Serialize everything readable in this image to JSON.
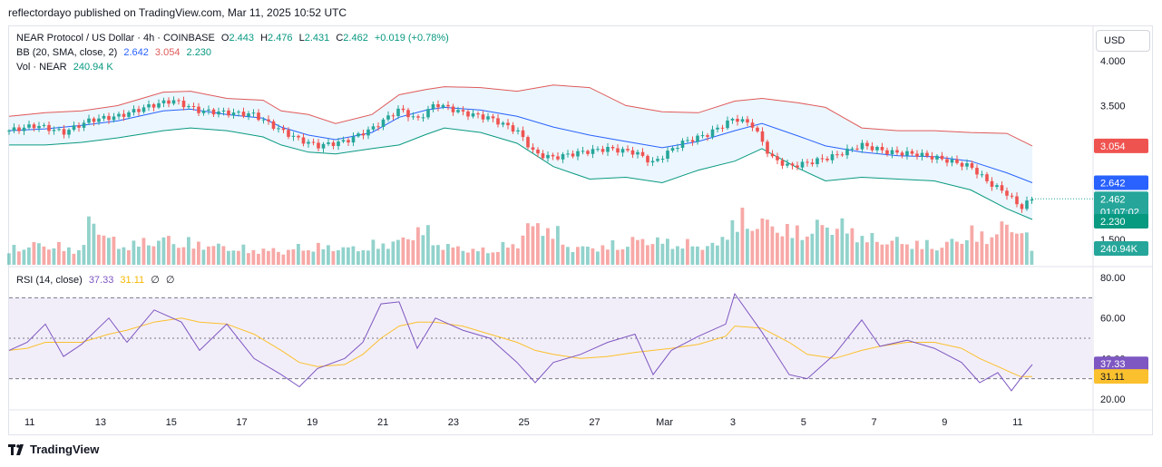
{
  "header": {
    "published": "reflectordayo published on TradingView.com, Mar 11, 2025 10:52 UTC"
  },
  "legend": {
    "symbol": "NEAR Protocol / US Dollar · 4h · COINBASE",
    "o_label": "O",
    "o": "2.443",
    "h_label": "H",
    "h": "2.476",
    "l_label": "L",
    "l": "2.431",
    "c_label": "C",
    "c": "2.462",
    "change": "+0.019 (+0.78%)",
    "bb_label": "BB (20, SMA, close, 2)",
    "bb_basis": "2.642",
    "bb_upper": "3.054",
    "bb_lower": "2.230",
    "vol_label": "Vol · NEAR",
    "vol": "240.94 K",
    "rsi_label": "RSI (14, close)",
    "rsi": "37.33",
    "rsi_ma": "31.11",
    "rsi_extra1": "∅",
    "rsi_extra2": "∅"
  },
  "currency_button": "USD",
  "price_axis": {
    "ticks": [
      "4.000",
      "3.500",
      "1.500"
    ],
    "badges": {
      "upper": "3.054",
      "basis": "2.642",
      "price": "2.462",
      "countdown": "01:07:02",
      "lower": "2.230",
      "volume": "240.94K"
    }
  },
  "rsi_axis": {
    "ticks": [
      "80.00",
      "60.00",
      "40.00",
      "20.00"
    ],
    "badges": {
      "rsi": "37.33",
      "ma": "31.11"
    }
  },
  "time_axis": [
    "11",
    "13",
    "15",
    "17",
    "19",
    "21",
    "23",
    "25",
    "27",
    "Mar",
    "3",
    "5",
    "7",
    "9",
    "11"
  ],
  "footer": {
    "brand": "TradingView"
  },
  "colors": {
    "up": "#26a69a",
    "down": "#ef5350",
    "bb_upper": "#e05a5a",
    "bb_basis": "#2962ff",
    "bb_lower": "#089981",
    "bb_fill": "#e3f2fd",
    "rsi": "#7e57c2",
    "rsi_ma": "#fbc02d",
    "rsi_band": "#ede7f6"
  },
  "chart_data": {
    "type": "candlestick",
    "series": [
      {
        "name": "BB (20, SMA, close, 2)",
        "subseries": [
          "upper",
          "basis",
          "lower"
        ]
      },
      {
        "name": "Vol · NEAR"
      },
      {
        "name": "RSI (14, close)"
      }
    ],
    "price_ylim": [
      2.2,
      4.05
    ],
    "rsi_ylim": [
      15,
      85
    ],
    "rsi_levels": [
      70,
      50,
      30
    ],
    "bb_points_x": [
      0,
      40,
      80,
      120,
      170,
      200,
      240,
      280,
      300,
      330,
      360,
      400,
      430,
      460,
      480,
      520,
      560,
      600,
      640,
      680,
      720,
      760,
      800,
      830,
      870,
      900,
      940,
      980,
      1020,
      1060,
      1100,
      1128
    ],
    "bb_upper": [
      3.38,
      3.42,
      3.44,
      3.5,
      3.65,
      3.66,
      3.58,
      3.56,
      3.44,
      3.4,
      3.3,
      3.4,
      3.62,
      3.68,
      3.71,
      3.7,
      3.66,
      3.73,
      3.7,
      3.5,
      3.43,
      3.42,
      3.55,
      3.58,
      3.53,
      3.48,
      3.25,
      3.22,
      3.22,
      3.2,
      3.19,
      3.05
    ],
    "bb_basis": [
      3.22,
      3.24,
      3.28,
      3.33,
      3.44,
      3.46,
      3.4,
      3.36,
      3.26,
      3.17,
      3.12,
      3.2,
      3.37,
      3.45,
      3.48,
      3.45,
      3.38,
      3.26,
      3.17,
      3.1,
      3.03,
      3.1,
      3.22,
      3.3,
      3.16,
      3.05,
      2.98,
      2.94,
      2.93,
      2.88,
      2.75,
      2.64
    ],
    "bb_lower": [
      3.06,
      3.06,
      3.09,
      3.14,
      3.22,
      3.25,
      3.22,
      3.15,
      3.06,
      2.98,
      2.96,
      3.02,
      3.06,
      3.18,
      3.25,
      3.2,
      3.08,
      2.82,
      2.68,
      2.7,
      2.64,
      2.78,
      2.88,
      3.02,
      2.8,
      2.66,
      2.7,
      2.68,
      2.66,
      2.56,
      2.35,
      2.23
    ],
    "close_points_x": [
      0,
      30,
      60,
      90,
      120,
      150,
      180,
      210,
      240,
      270,
      300,
      320,
      340,
      370,
      400,
      430,
      450,
      470,
      500,
      530,
      560,
      580,
      600,
      630,
      660,
      690,
      710,
      740,
      770,
      800,
      820,
      840,
      860,
      880,
      910,
      940,
      970,
      1000,
      1030,
      1060,
      1080,
      1100,
      1115,
      1128
    ],
    "close": [
      3.22,
      3.28,
      3.2,
      3.34,
      3.38,
      3.48,
      3.56,
      3.44,
      3.42,
      3.4,
      3.22,
      3.12,
      3.05,
      3.1,
      3.24,
      3.46,
      3.34,
      3.52,
      3.42,
      3.36,
      3.22,
      2.96,
      2.92,
      2.98,
      3.02,
      2.98,
      2.86,
      3.08,
      3.18,
      3.36,
      3.28,
      2.92,
      2.82,
      2.86,
      2.94,
      3.06,
      2.98,
      2.96,
      2.9,
      2.82,
      2.64,
      2.52,
      2.36,
      2.46
    ],
    "volume_points_x": [
      0,
      40,
      80,
      90,
      120,
      170,
      210,
      250,
      300,
      330,
      380,
      410,
      440,
      450,
      480,
      520,
      560,
      570,
      595,
      620,
      660,
      700,
      740,
      780,
      800,
      830,
      870,
      910,
      950,
      980,
      1030,
      1060,
      1080,
      1100,
      1115,
      1128
    ],
    "volume_rel": [
      0.35,
      0.45,
      0.3,
      1.0,
      0.4,
      0.55,
      0.45,
      0.35,
      0.3,
      0.4,
      0.35,
      0.45,
      0.55,
      0.85,
      0.4,
      0.3,
      0.45,
      0.8,
      0.85,
      0.35,
      0.4,
      0.55,
      0.45,
      0.4,
      1.0,
      0.9,
      0.7,
      0.9,
      0.55,
      0.5,
      0.4,
      0.7,
      0.6,
      0.85,
      0.8,
      0.35
    ],
    "rsi_points_x": [
      0,
      20,
      40,
      60,
      80,
      110,
      130,
      160,
      190,
      210,
      240,
      270,
      300,
      320,
      340,
      370,
      390,
      410,
      430,
      450,
      470,
      500,
      530,
      560,
      580,
      600,
      630,
      660,
      690,
      710,
      730,
      760,
      790,
      800,
      830,
      860,
      880,
      910,
      940,
      960,
      990,
      1020,
      1050,
      1070,
      1090,
      1105,
      1115,
      1128
    ],
    "rsi": [
      44,
      48,
      57,
      41,
      47,
      60,
      48,
      64,
      58,
      44,
      57,
      40,
      32,
      26,
      35,
      40,
      48,
      67,
      68,
      45,
      60,
      54,
      50,
      38,
      28,
      38,
      42,
      48,
      52,
      32,
      44,
      51,
      57,
      72,
      53,
      32,
      30,
      42,
      59,
      46,
      49,
      45,
      38,
      28,
      33,
      24,
      30,
      37
    ],
    "rsi_ma": [
      44,
      45,
      48,
      48,
      48,
      52,
      54,
      58,
      60,
      58,
      57,
      52,
      44,
      38,
      36,
      37,
      42,
      50,
      56,
      58,
      58,
      56,
      52,
      48,
      44,
      42,
      40,
      41,
      43,
      44,
      45,
      47,
      51,
      56,
      55,
      48,
      42,
      40,
      44,
      46,
      48,
      48,
      45,
      40,
      36,
      33,
      31,
      31
    ]
  }
}
